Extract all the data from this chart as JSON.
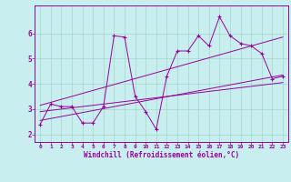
{
  "xlabel": "Windchill (Refroidissement éolien,°C)",
  "bg_color": "#c8eef0",
  "grid_color": "#a0d8c8",
  "line_color": "#990099",
  "xlim": [
    -0.5,
    23.5
  ],
  "ylim": [
    1.7,
    7.1
  ],
  "xticks": [
    0,
    1,
    2,
    3,
    4,
    5,
    6,
    7,
    8,
    9,
    10,
    11,
    12,
    13,
    14,
    15,
    16,
    17,
    18,
    19,
    20,
    21,
    22,
    23
  ],
  "yticks": [
    2,
    3,
    4,
    5,
    6
  ],
  "series1_x": [
    0,
    1,
    2,
    3,
    4,
    5,
    6,
    7,
    8,
    9,
    10,
    11,
    12,
    13,
    14,
    15,
    16,
    17,
    18,
    19,
    20,
    21,
    22,
    23
  ],
  "series1_y": [
    2.4,
    3.2,
    3.1,
    3.1,
    2.45,
    2.45,
    3.1,
    5.9,
    5.85,
    3.5,
    2.9,
    2.2,
    4.3,
    5.3,
    5.3,
    5.9,
    5.5,
    6.65,
    5.9,
    5.6,
    5.5,
    5.2,
    4.2,
    4.3
  ],
  "series2_x": [
    0,
    23
  ],
  "series2_y": [
    2.55,
    4.35
  ],
  "series3_x": [
    0,
    23
  ],
  "series3_y": [
    2.9,
    4.05
  ],
  "series4_x": [
    0,
    23
  ],
  "series4_y": [
    3.15,
    5.85
  ]
}
